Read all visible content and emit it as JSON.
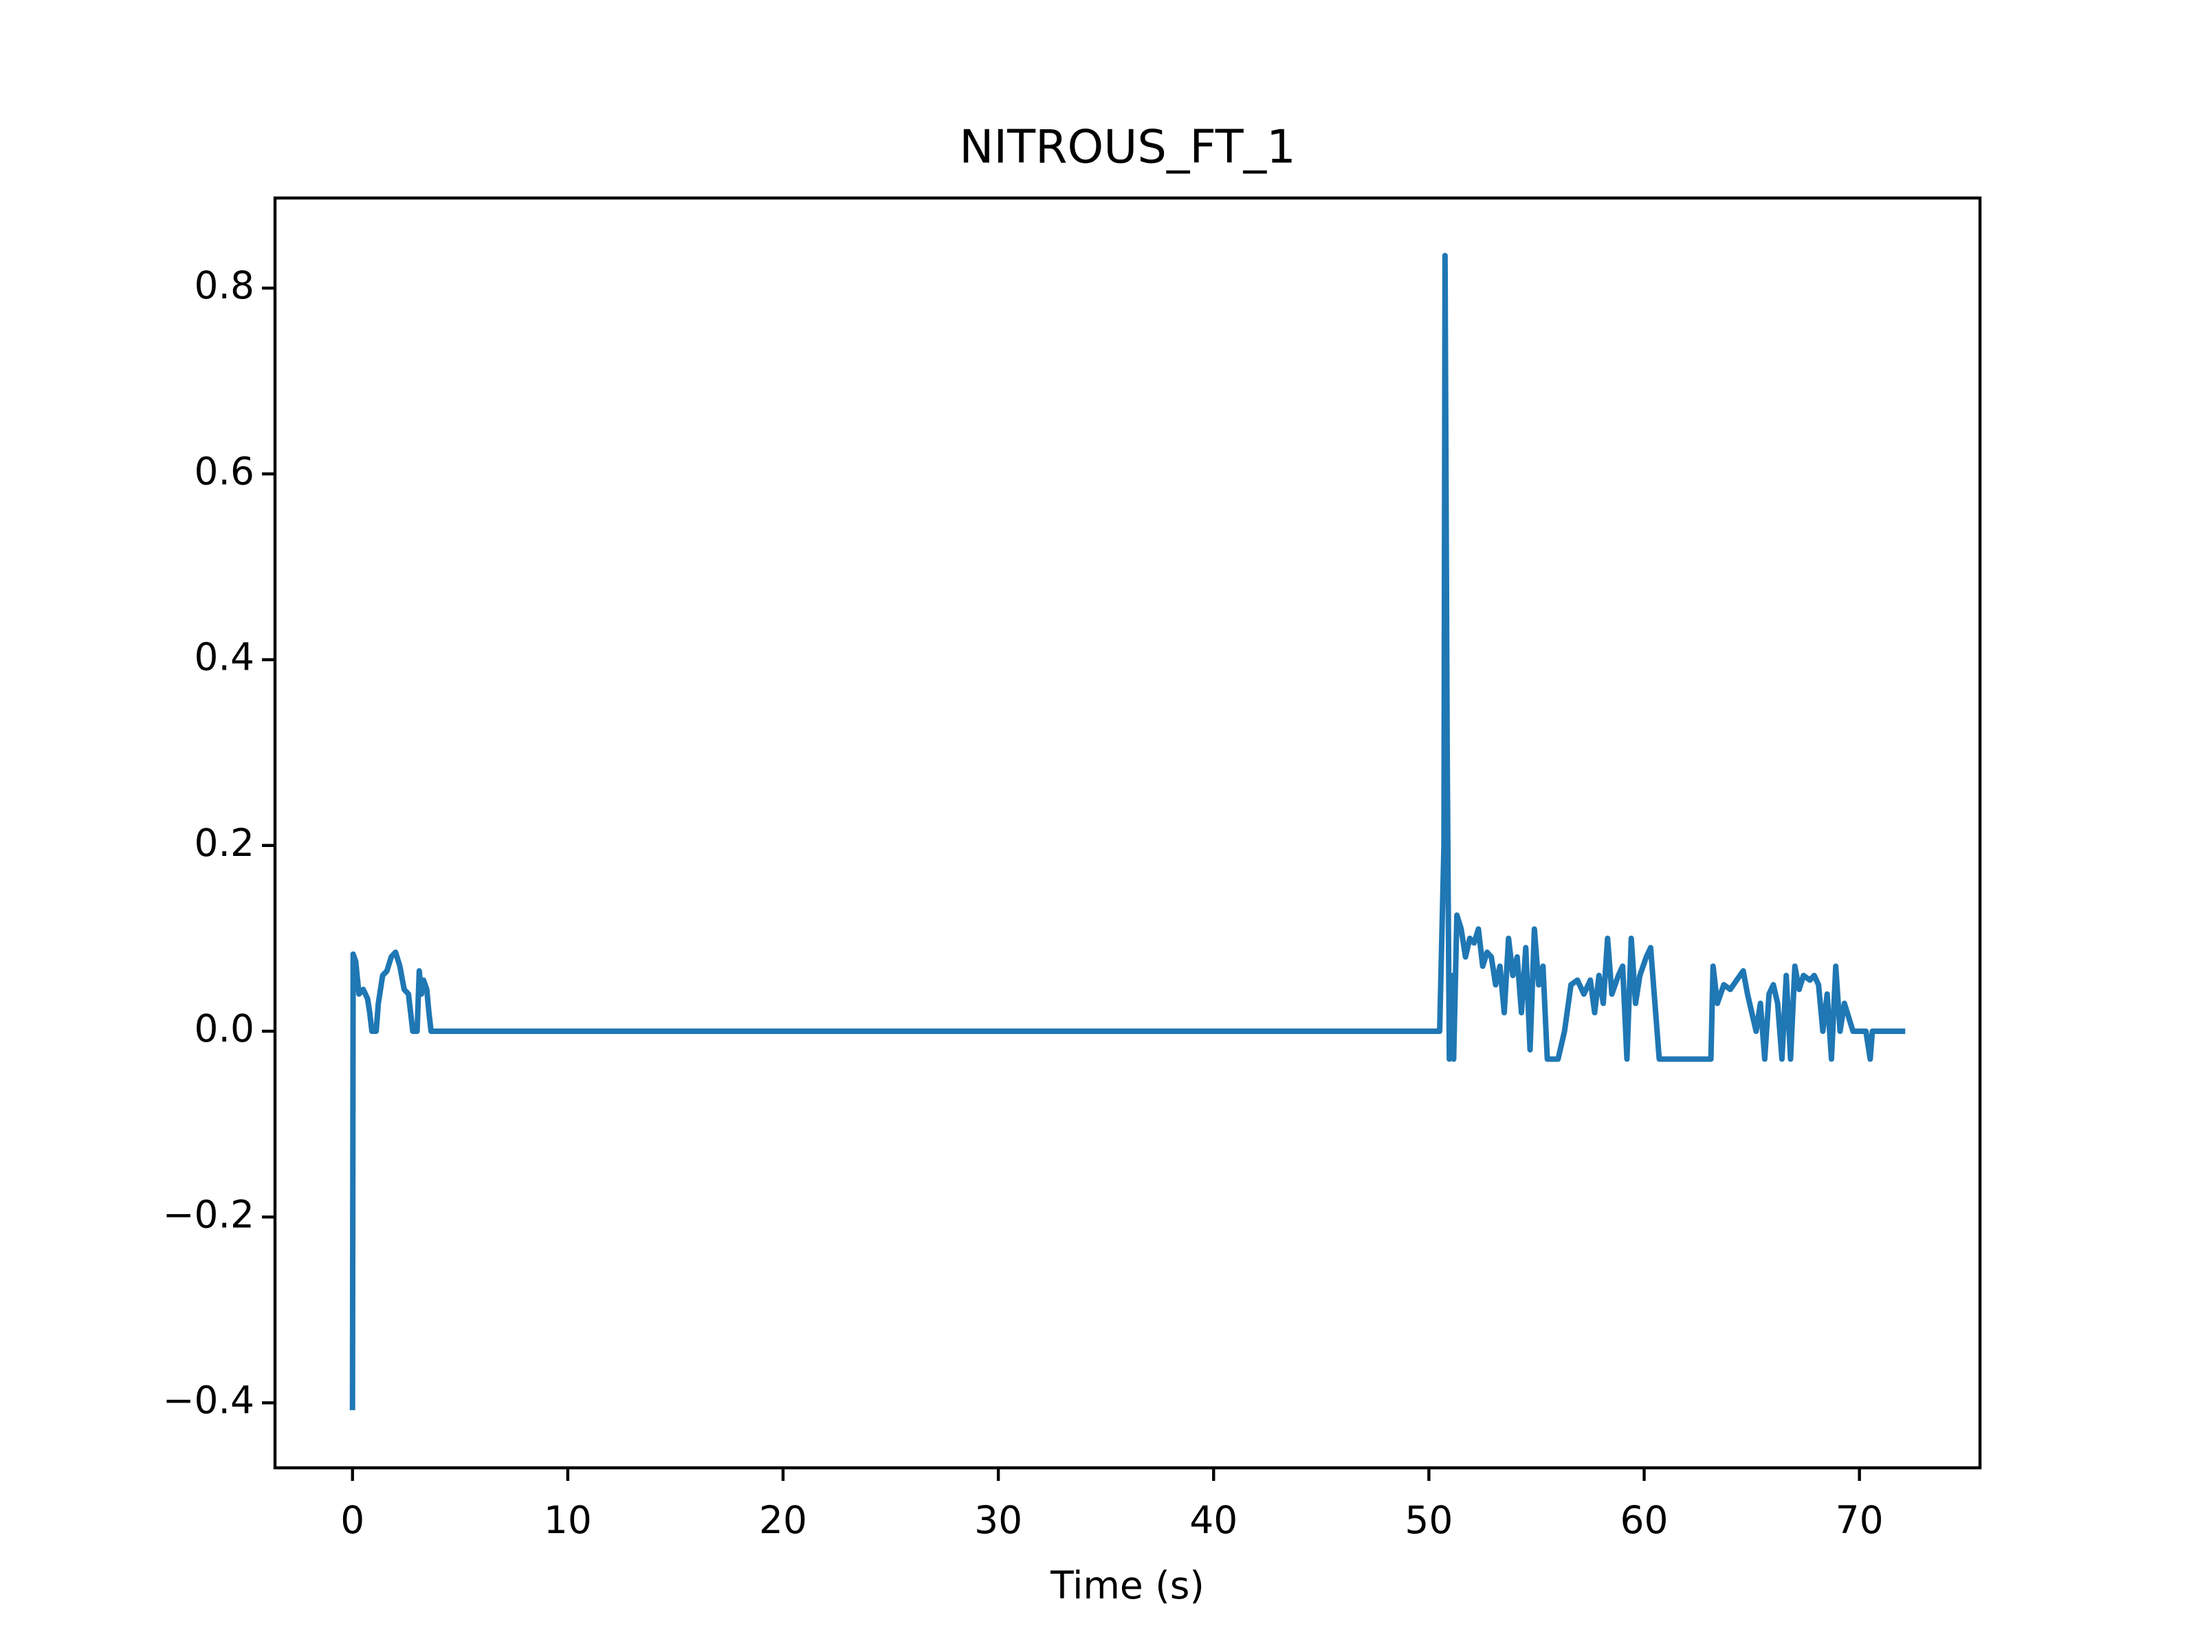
{
  "chart_data": {
    "type": "line",
    "title": "NITROUS_FT_1",
    "x_label": "Time (s)",
    "x": [
      0,
      0.03,
      0.15,
      0.3,
      0.5,
      0.7,
      0.8,
      0.9,
      1.1,
      1.2,
      1.4,
      1.6,
      1.8,
      2.0,
      2.2,
      2.4,
      2.6,
      2.7,
      2.8,
      3.0,
      3.1,
      3.2,
      3.3,
      3.45,
      3.55,
      3.65,
      50.5,
      50.7,
      50.75,
      50.85,
      50.95,
      51.05,
      51.15,
      51.3,
      51.5,
      51.7,
      51.9,
      52.1,
      52.3,
      52.5,
      52.7,
      52.9,
      53.1,
      53.3,
      53.5,
      53.7,
      53.9,
      54.1,
      54.3,
      54.5,
      54.7,
      54.9,
      55.1,
      55.3,
      55.5,
      55.7,
      56.0,
      56.3,
      56.6,
      56.9,
      57.2,
      57.5,
      57.7,
      57.9,
      58.1,
      58.3,
      58.5,
      58.8,
      59.0,
      59.2,
      59.4,
      59.6,
      59.8,
      60.1,
      60.3,
      60.5,
      60.7,
      61.5,
      62.5,
      63.1,
      63.2,
      63.4,
      63.7,
      64.0,
      64.3,
      64.6,
      64.8,
      65.0,
      65.2,
      65.4,
      65.6,
      65.8,
      66.0,
      66.2,
      66.4,
      66.6,
      66.8,
      67.0,
      67.2,
      67.4,
      67.7,
      67.9,
      68.1,
      68.3,
      68.5,
      68.7,
      68.9,
      69.1,
      69.3,
      69.5,
      69.7,
      70.3,
      70.5,
      70.6,
      72
    ],
    "series": [
      {
        "color": "#1f77b4",
        "values": [
          -0.405,
          0.083,
          0.075,
          0.04,
          0.045,
          0.035,
          0.02,
          0,
          0,
          0.03,
          0.06,
          0.065,
          0.08,
          0.085,
          0.07,
          0.045,
          0.04,
          0.02,
          0,
          0,
          0.065,
          0.04,
          0.055,
          0.045,
          0.02,
          0,
          0,
          0.2,
          0.835,
          0.3,
          -0.03,
          0.06,
          -0.03,
          0.125,
          0.11,
          0.08,
          0.1,
          0.095,
          0.11,
          0.07,
          0.085,
          0.08,
          0.05,
          0.07,
          0.02,
          0.1,
          0.06,
          0.08,
          0.02,
          0.09,
          -0.02,
          0.11,
          0.05,
          0.07,
          -0.03,
          -0.03,
          -0.03,
          0,
          0.05,
          0.055,
          0.04,
          0.055,
          0.02,
          0.06,
          0.03,
          0.1,
          0.04,
          0.06,
          0.07,
          -0.03,
          0.1,
          0.03,
          0.06,
          0.08,
          0.09,
          0.03,
          -0.03,
          -0.03,
          -0.03,
          -0.03,
          0.07,
          0.03,
          0.05,
          0.045,
          0.055,
          0.065,
          0.04,
          0.02,
          0,
          0.03,
          -0.03,
          0.04,
          0.05,
          0.03,
          -0.03,
          0.06,
          -0.03,
          0.07,
          0.045,
          0.06,
          0.055,
          0.06,
          0.05,
          0,
          0.04,
          -0.03,
          0.07,
          0,
          0.03,
          0.015,
          0,
          0,
          -0.03,
          0,
          0
        ]
      }
    ],
    "xlim": [
      -3.6,
      75.6
    ],
    "ylim": [
      -0.47,
      0.897
    ],
    "xticks": [
      0,
      10,
      20,
      30,
      40,
      50,
      60,
      70
    ],
    "yticks": [
      {
        "value": -0.4,
        "label": "−0.4"
      },
      {
        "value": -0.2,
        "label": "−0.2"
      },
      {
        "value": 0,
        "label": "0.0"
      },
      0.2,
      0.4,
      0.6,
      0.8
    ]
  }
}
